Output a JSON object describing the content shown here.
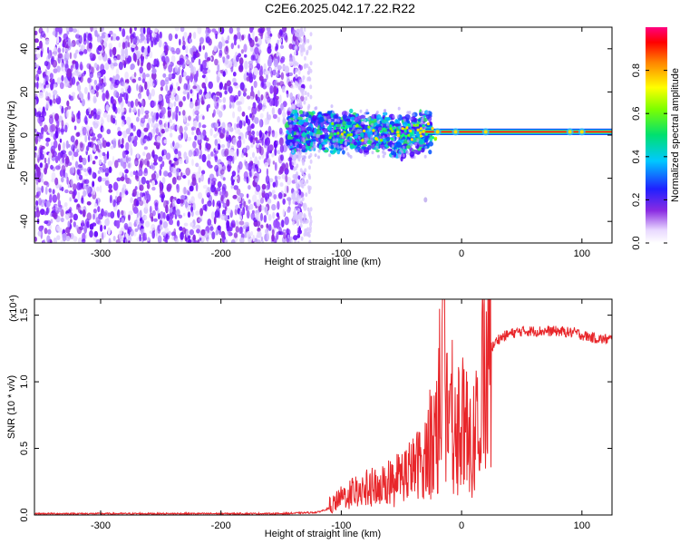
{
  "title": "C2E6.2025.042.17.22.R22",
  "chart_data": [
    {
      "type": "heatmap",
      "name": "spectrogram",
      "xlabel": "Height of straight line (km)",
      "ylabel": "Frequency (Hz)",
      "xlim": [
        -355,
        125
      ],
      "ylim": [
        -50,
        50
      ],
      "xticks": [
        -300,
        -200,
        -100,
        0,
        100
      ],
      "yticks": [
        -40,
        -20,
        0,
        20,
        40
      ],
      "noise_region_x": [
        -355,
        -130
      ],
      "transition_region_x": [
        -145,
        -25
      ],
      "carrier_line_y": 1.5,
      "colorbar": {
        "label": "Normalized spectral amplitude",
        "range": [
          0.0,
          1.0
        ],
        "ticks": [
          0.0,
          0.2,
          0.4,
          0.6,
          0.8
        ]
      }
    },
    {
      "type": "line",
      "name": "snr",
      "xlabel": "Height of straight line (km)",
      "ylabel": "SNR (10 * v/v)",
      "multiplier_label": "(x10⁴)",
      "xlim": [
        -355,
        125
      ],
      "ylim": [
        0,
        1.62
      ],
      "xticks": [
        -300,
        -200,
        -100,
        0,
        100
      ],
      "yticks": [
        0.0,
        0.5,
        1.0,
        1.5
      ],
      "color": "#e8262a",
      "series": [
        {
          "name": "SNR",
          "x": [
            -355,
            -300,
            -250,
            -200,
            -150,
            -120,
            -110,
            -100,
            -90,
            -80,
            -70,
            -60,
            -50,
            -40,
            -30,
            -25,
            -20,
            -18,
            -15,
            -10,
            -5,
            0,
            5,
            10,
            15,
            20,
            25,
            30,
            40,
            50,
            60,
            70,
            80,
            90,
            95,
            100,
            105,
            110,
            115,
            125
          ],
          "y": [
            0.01,
            0.01,
            0.01,
            0.01,
            0.01,
            0.02,
            0.05,
            0.13,
            0.18,
            0.2,
            0.22,
            0.25,
            0.3,
            0.35,
            0.45,
            0.6,
            0.75,
            1.0,
            0.85,
            0.8,
            0.75,
            0.72,
            0.62,
            0.6,
            0.95,
            1.15,
            1.25,
            1.32,
            1.36,
            1.38,
            1.38,
            1.38,
            1.38,
            1.37,
            1.37,
            1.35,
            1.34,
            1.33,
            1.32,
            1.32
          ]
        }
      ]
    }
  ]
}
